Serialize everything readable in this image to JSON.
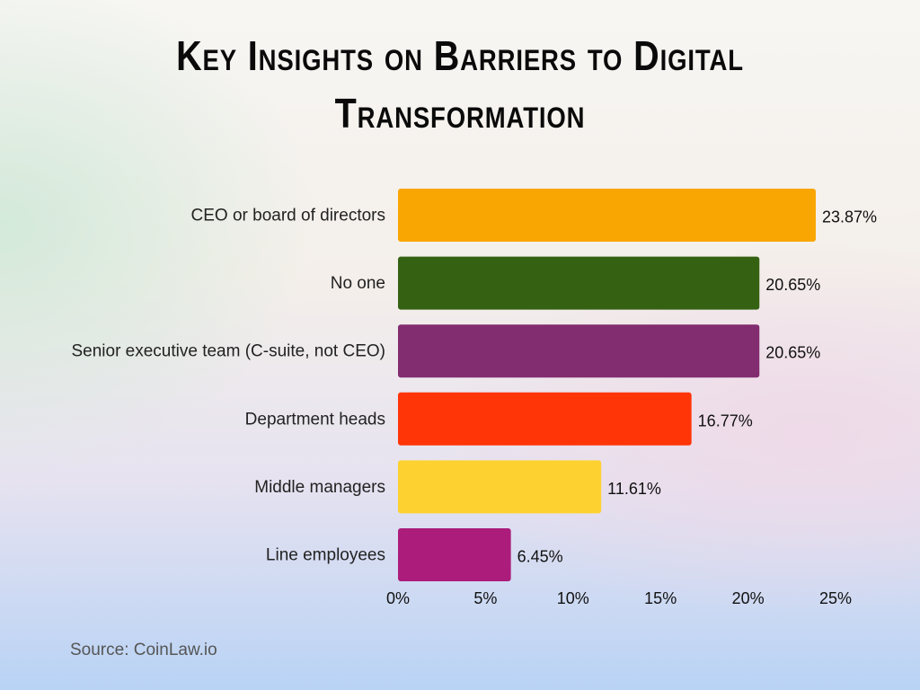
{
  "chart_data": {
    "type": "bar",
    "orientation": "horizontal",
    "title": "Key Insights on Barriers to Digital Transformation",
    "categories": [
      "CEO or board of directors",
      "No one",
      "Senior executive team (C-suite, not CEO)",
      "Department heads",
      "Middle managers",
      "Line employees"
    ],
    "values": [
      23.87,
      20.65,
      20.65,
      16.77,
      11.61,
      6.45
    ],
    "value_labels": [
      "23.87%",
      "20.65%",
      "20.65%",
      "16.77%",
      "11.61%",
      "6.45%"
    ],
    "colors": [
      "#f9a602",
      "#346212",
      "#822d70",
      "#ff3508",
      "#fdd230",
      "#ab1c7b"
    ],
    "xlim": [
      0,
      25
    ],
    "xticks": [
      0,
      5,
      10,
      15,
      20,
      25
    ],
    "xtick_labels": [
      "0%",
      "5%",
      "10%",
      "15%",
      "20%",
      "25%"
    ],
    "xlabel": "",
    "ylabel": "",
    "grid": false,
    "legend": "none"
  },
  "source": "Source: CoinLaw.io"
}
